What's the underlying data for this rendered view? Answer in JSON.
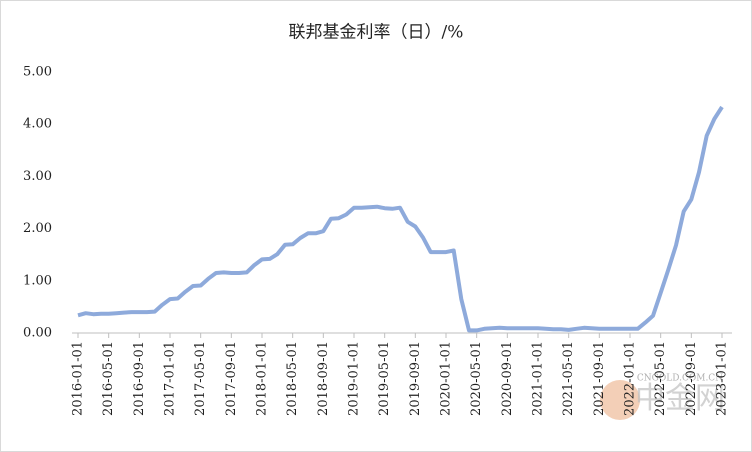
{
  "chart_data": {
    "type": "line",
    "title": "联邦基金利率（日）/%",
    "categories": [
      "2016-01-01",
      null,
      null,
      null,
      "2016-05-01",
      null,
      null,
      null,
      "2016-09-01",
      null,
      null,
      null,
      "2017-01-01",
      null,
      null,
      null,
      "2017-05-01",
      null,
      null,
      null,
      "2017-09-01",
      null,
      null,
      null,
      "2018-01-01",
      null,
      null,
      null,
      "2018-05-01",
      null,
      null,
      null,
      "2018-09-01",
      null,
      null,
      null,
      "2019-01-01",
      null,
      null,
      null,
      "2019-05-01",
      null,
      null,
      null,
      "2019-09-01",
      null,
      null,
      null,
      "2020-01-01",
      null,
      null,
      null,
      "2020-05-01",
      null,
      null,
      null,
      "2020-09-01",
      null,
      null,
      null,
      "2021-01-01",
      null,
      null,
      null,
      "2021-05-01",
      null,
      null,
      null,
      "2021-09-01",
      null,
      null,
      null,
      "2022-01-01",
      null,
      null,
      null,
      "2022-05-01",
      null,
      null,
      null,
      "2022-09-01",
      null,
      null,
      null,
      "2023-01-01"
    ],
    "values": [
      0.34,
      0.38,
      0.36,
      0.37,
      0.37,
      0.38,
      0.39,
      0.4,
      0.4,
      0.4,
      0.41,
      0.54,
      0.65,
      0.66,
      0.79,
      0.9,
      0.91,
      1.04,
      1.15,
      1.16,
      1.15,
      1.15,
      1.16,
      1.3,
      1.41,
      1.42,
      1.51,
      1.69,
      1.7,
      1.82,
      1.91,
      1.91,
      1.95,
      2.19,
      2.2,
      2.27,
      2.4,
      2.4,
      2.41,
      2.42,
      2.39,
      2.38,
      2.4,
      2.13,
      2.04,
      1.83,
      1.55,
      1.55,
      1.55,
      1.58,
      0.65,
      0.05,
      0.05,
      0.08,
      0.09,
      0.1,
      0.09,
      0.09,
      0.09,
      0.09,
      0.09,
      0.08,
      0.07,
      0.07,
      0.06,
      0.08,
      0.1,
      0.09,
      0.08,
      0.08,
      0.08,
      0.08,
      0.08,
      0.08,
      0.2,
      0.33,
      0.77,
      1.21,
      1.68,
      2.33,
      2.56,
      3.08,
      3.78,
      4.1,
      4.33
    ],
    "color": "#8eaadb",
    "ylim": [
      0,
      5
    ],
    "yticks": [
      {
        "value": 0,
        "label": "0.00"
      },
      {
        "value": 1,
        "label": "1.00"
      },
      {
        "value": 2,
        "label": "2.00"
      },
      {
        "value": 3,
        "label": "3.00"
      },
      {
        "value": 4,
        "label": "4.00"
      },
      {
        "value": 5,
        "label": "5.00"
      }
    ],
    "grid": false,
    "watermark": "中金网",
    "watermark_sub": "CNGOLD.COM.CN"
  }
}
